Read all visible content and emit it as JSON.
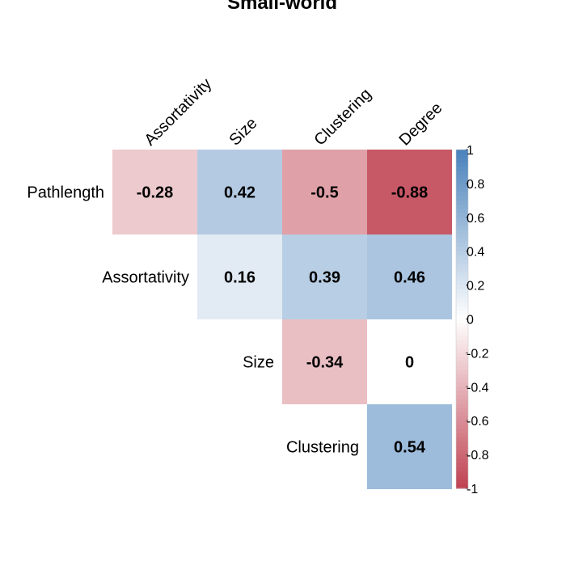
{
  "chart_data": {
    "type": "heatmap",
    "title": "Small-world",
    "columns": [
      "Assortativity",
      "Size",
      "Clustering",
      "Degree"
    ],
    "rows": [
      "Pathlength",
      "Assortativity",
      "Size",
      "Clustering"
    ],
    "cells": [
      {
        "row": "Pathlength",
        "col": "Assortativity",
        "value": -0.28
      },
      {
        "row": "Pathlength",
        "col": "Size",
        "value": 0.42
      },
      {
        "row": "Pathlength",
        "col": "Clustering",
        "value": -0.5
      },
      {
        "row": "Pathlength",
        "col": "Degree",
        "value": -0.88
      },
      {
        "row": "Assortativity",
        "col": "Size",
        "value": 0.16
      },
      {
        "row": "Assortativity",
        "col": "Clustering",
        "value": 0.39
      },
      {
        "row": "Assortativity",
        "col": "Degree",
        "value": 0.46
      },
      {
        "row": "Size",
        "col": "Clustering",
        "value": -0.34
      },
      {
        "row": "Size",
        "col": "Degree",
        "value": 0
      },
      {
        "row": "Clustering",
        "col": "Degree",
        "value": 0.54
      }
    ],
    "colorbar": {
      "min": -1,
      "max": 1,
      "ticks": [
        "1",
        "0.8",
        "0.6",
        "0.4",
        "0.2",
        "0",
        "-0.2",
        "-0.4",
        "-0.6",
        "-0.8",
        "-1"
      ],
      "colors": {
        "negative": "#b2182b",
        "zero": "#ffffff",
        "positive": "#2166ac"
      }
    }
  }
}
